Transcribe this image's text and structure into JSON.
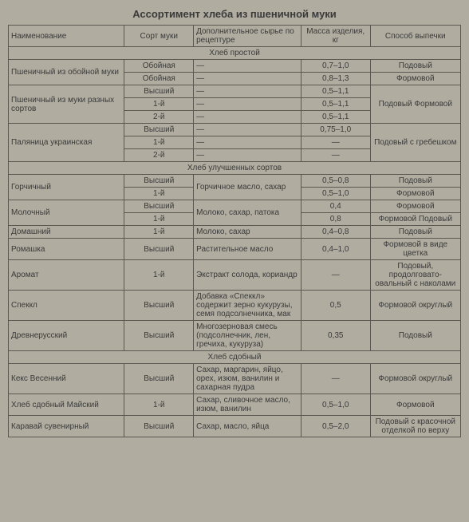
{
  "title": "Ассортимент хлеба из пшеничной муки",
  "columns": [
    "Наименование",
    "Сорт муки",
    "Дополнительное сырье по рецептуре",
    "Масса изделия, кг",
    "Способ выпечки"
  ],
  "sections": [
    {
      "header": "Хлеб простой",
      "rows": [
        {
          "name": "Пшеничный из обойной муки",
          "name_rowspan": 2,
          "flour": "Обойная",
          "extra": "—",
          "mass": "0,7–1,0",
          "method": "Подовый"
        },
        {
          "flour": "Обойная",
          "extra": "—",
          "mass": "0,8–1,3",
          "method": "Формовой"
        },
        {
          "name": "Пшеничный из муки разных сортов",
          "name_rowspan": 3,
          "flour": "Высший",
          "extra": "—",
          "mass": "0,5–1,1",
          "method": "Подовый Формовой",
          "method_rowspan": 3
        },
        {
          "flour": "1-й",
          "extra": "—",
          "mass": "0,5–1,1"
        },
        {
          "flour": "2-й",
          "extra": "—",
          "mass": "0,5–1,1"
        },
        {
          "name": "Паляница украинская",
          "name_rowspan": 3,
          "flour": "Высший",
          "extra": "—",
          "mass": "0,75–1,0",
          "method": "Подовый с гребешком",
          "method_rowspan": 3
        },
        {
          "flour": "1-й",
          "extra": "—",
          "mass": "—"
        },
        {
          "flour": "2-й",
          "extra": "—",
          "mass": "—"
        }
      ]
    },
    {
      "header": "Хлеб улучшенных сортов",
      "rows": [
        {
          "name": "Горчичный",
          "name_rowspan": 2,
          "flour": "Высший",
          "extra": "Горчичное масло, сахар",
          "extra_rowspan": 2,
          "mass": "0,5–0,8",
          "method": "Подовый"
        },
        {
          "flour": "1-й",
          "mass": "0,5–1,0",
          "method": "Формовой"
        },
        {
          "name": "Молочный",
          "name_rowspan": 2,
          "flour": "Высший",
          "extra": "Молоко, сахар, патока",
          "extra_rowspan": 2,
          "mass": "0,4",
          "method": "Формовой"
        },
        {
          "flour": "1-й",
          "mass": "0,8",
          "method": "Формовой Подовый"
        },
        {
          "name": "Домашний",
          "flour": "1-й",
          "extra": "Молоко, сахар",
          "mass": "0,4–0,8",
          "method": "Подовый"
        },
        {
          "name": "Ромашка",
          "flour": "Высший",
          "extra": "Растительное масло",
          "mass": "0,4–1,0",
          "method": "Формовой в виде цветка"
        },
        {
          "name": "Аромат",
          "flour": "1-й",
          "extra": "Экстракт солода, кориандр",
          "mass": "—",
          "method": "Подовый, продолговато-овальный с наколами"
        },
        {
          "name": "Спеккл",
          "flour": "Высший",
          "extra": "Добавка «Спеккл» содержит зерно кукурузы, семя подсолнечника, мак",
          "mass": "0,5",
          "method": "Формовой округлый"
        },
        {
          "name": "Древнерусский",
          "flour": "Высший",
          "extra": "Многозерновая смесь (подсолнечник, лен, гречиха, кукуруза)",
          "mass": "0,35",
          "method": "Подовый"
        }
      ]
    },
    {
      "header": "Хлеб сдобный",
      "rows": [
        {
          "name": "Кекс Весенний",
          "flour": "Высший",
          "extra": "Сахар, маргарин, яйцо, орех, изюм, ванилин и сахарная пудра",
          "mass": "—",
          "method": "Формовой округлый"
        },
        {
          "name": "Хлеб сдобный Майский",
          "flour": "1-й",
          "extra": "Сахар, сливочное масло, изюм, ванилин",
          "mass": "0,5–1,0",
          "method": "Формовой"
        },
        {
          "name": "Каравай сувенирный",
          "flour": "Высший",
          "extra": "Сахар, масло, яйца",
          "mass": "0,5–2,0",
          "method": "Подовый с красочной отделкой по верху"
        }
      ]
    }
  ]
}
